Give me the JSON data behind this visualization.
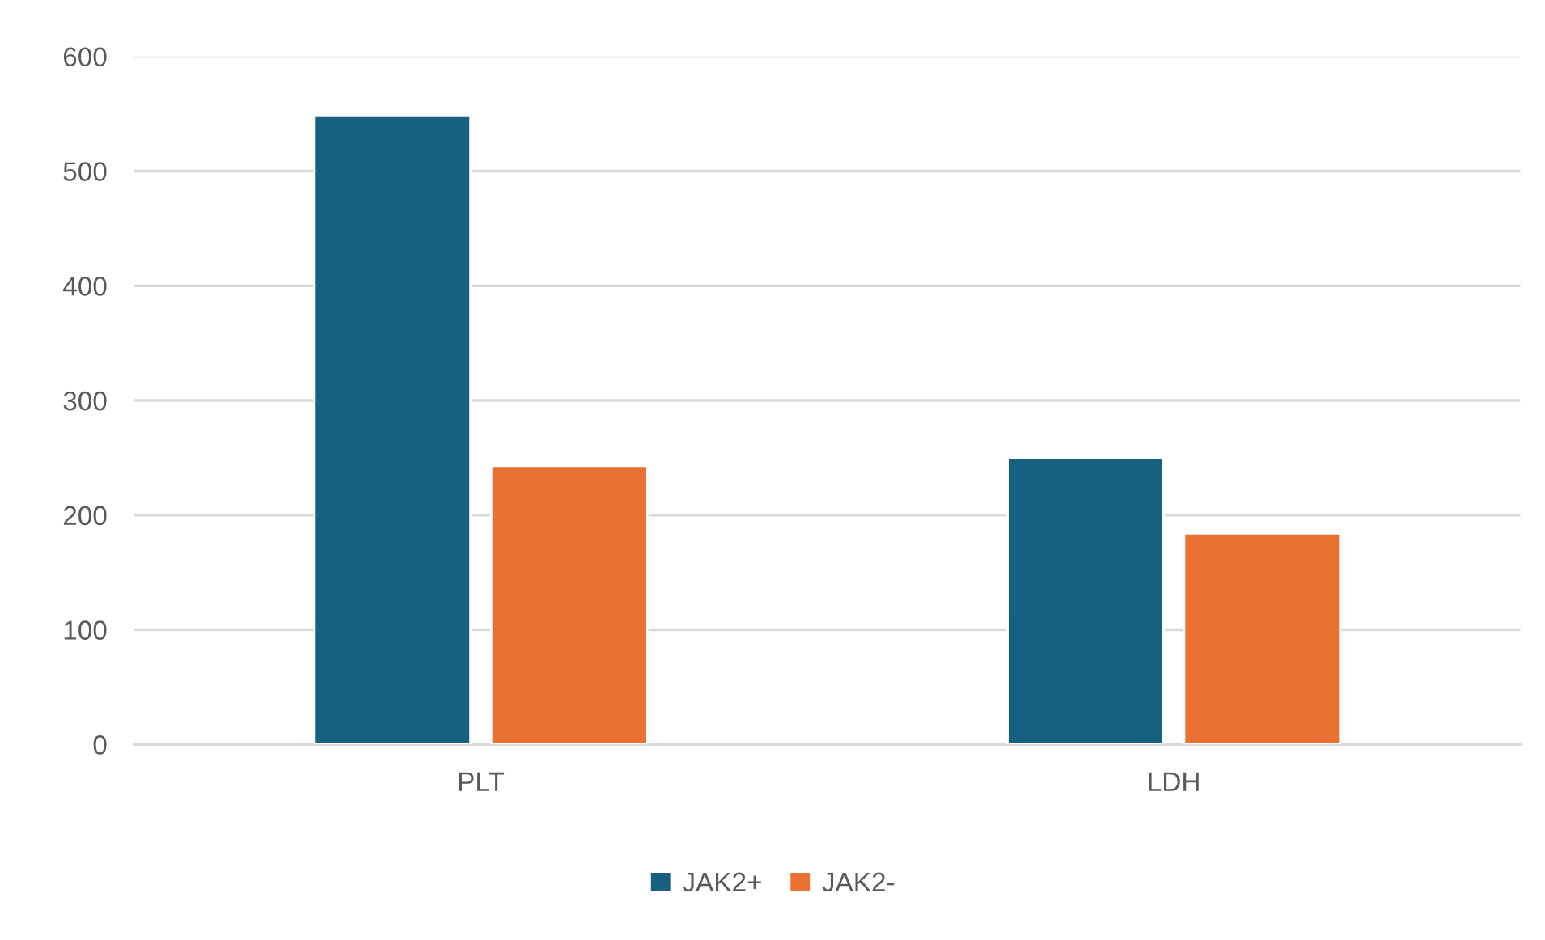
{
  "chart_data": {
    "type": "bar",
    "categories": [
      "PLT",
      "LDH"
    ],
    "series": [
      {
        "name": "JAK2+",
        "color": "#17607f",
        "values": [
          548,
          250
        ]
      },
      {
        "name": "JAK2-",
        "color": "#e97132",
        "values": [
          243,
          184
        ]
      }
    ],
    "ylim": [
      0,
      600
    ],
    "yticks": [
      0,
      100,
      200,
      300,
      400,
      500,
      600
    ],
    "grid": "y",
    "legend": "bottom"
  }
}
